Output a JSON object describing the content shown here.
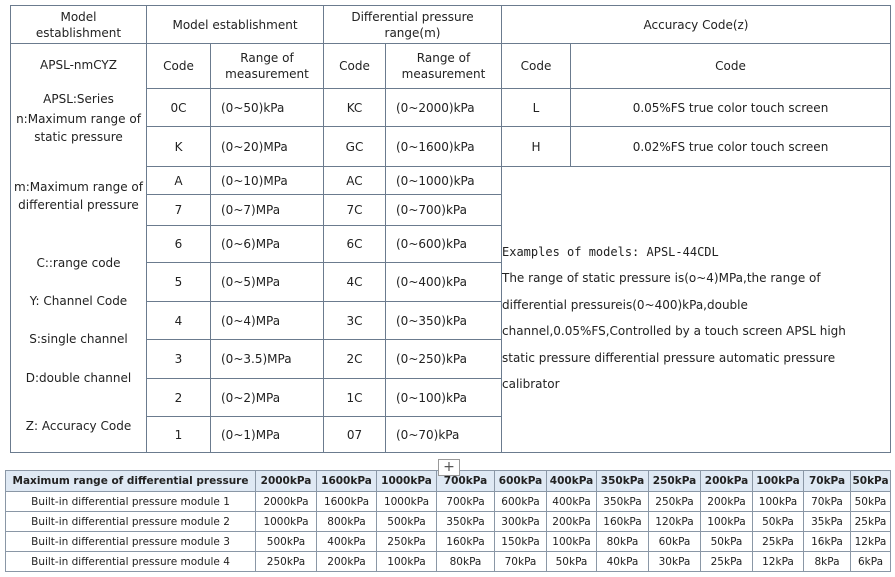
{
  "top_table": {
    "headers": [
      "Model establishment",
      "Model establishment",
      "Differential pressure range(m)",
      "Accuracy Code(z)"
    ],
    "subheaders": [
      "Code",
      "Range of measurement",
      "Code",
      "Range of measurement",
      "Code",
      "Code"
    ],
    "left_column": [
      "APSL-nmCYZ",
      "APSL:Series",
      "n:Maximum range of static pressure",
      "m:Maximum range of differential pressure",
      "C::range code",
      "Y: Channel Code",
      "S:single channel",
      "D:double channel",
      "Z: Accuracy Code"
    ],
    "rows": [
      [
        "0C",
        "(0~50)kPa",
        "KC",
        "(0~2000)kPa"
      ],
      [
        "K",
        "(0~20)MPa",
        "GC",
        "(0~1600)kPa"
      ],
      [
        "A",
        "(0~10)MPa",
        "AC",
        "(0~1000)kPa"
      ],
      [
        "7",
        "(0~7)MPa",
        "7C",
        "(0~700)kPa"
      ],
      [
        "6",
        "(0~6)MPa",
        "6C",
        "(0~600)kPa"
      ],
      [
        "5",
        "(0~5)MPa",
        "4C",
        "(0~400)kPa"
      ],
      [
        "4",
        "(0~4)MPa",
        "3C",
        "(0~350)kPa"
      ],
      [
        "3",
        "(0~3.5)MPa",
        "2C",
        "(0~250)kPa"
      ],
      [
        "2",
        "(0~2)MPa",
        "1C",
        "(0~100)kPa"
      ],
      [
        "1",
        "(0~1)MPa",
        "07",
        "(0~70)kPa"
      ]
    ],
    "accuracy_rows": [
      [
        "L",
        "0.05%FS true color touch screen"
      ],
      [
        "H",
        "0.02%FS true color touch screen"
      ]
    ],
    "example_title": "Examples of models: APSL-44CDL",
    "example_text": "The range of static pressure is(o~4)MPa,the range of differential pressureis(0~400)kPa,double channel,0.05%FS,Controlled by a touch screen APSL high static pressure differential pressure automatic pressure calibrator"
  },
  "bottom_table": {
    "header": [
      "Maximum range of differential pressure",
      "2000kPa",
      "1600kPa",
      "1000kPa",
      "700kPa",
      "600kPa",
      "400kPa",
      "350kPa",
      "250kPa",
      "200kPa",
      "100kPa",
      "70kPa",
      "50kPa"
    ],
    "rows": [
      [
        "Built-in differential pressure module 1",
        "2000kPa",
        "1600kPa",
        "1000kPa",
        "700kPa",
        "600kPa",
        "400kPa",
        "350kPa",
        "250kPa",
        "200kPa",
        "100kPa",
        "70kPa",
        "50kPa"
      ],
      [
        "Built-in differential pressure module 2",
        "1000kPa",
        "800kPa",
        "500kPa",
        "350kPa",
        "300kPa",
        "200kPa",
        "160kPa",
        "120kPa",
        "100kPa",
        "50kPa",
        "35kPa",
        "25kPa"
      ],
      [
        "Built-in differential pressure module 3",
        "500kPa",
        "400kPa",
        "250kPa",
        "160kPa",
        "150kPa",
        "100kPa",
        "80kPa",
        "60kPa",
        "50kPa",
        "25kPa",
        "16kPa",
        "12kPa"
      ],
      [
        "Built-in differential pressure module 4",
        "250kPa",
        "200kPa",
        "100kPa",
        "80kPa",
        "70kPa",
        "50kPa",
        "40kPa",
        "30kPa",
        "25kPa",
        "12kPa",
        "8kPa",
        "6kPa"
      ]
    ]
  }
}
